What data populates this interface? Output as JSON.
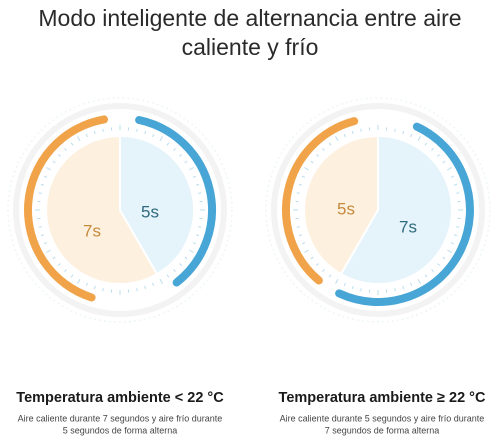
{
  "title": [
    "Modo inteligente de alternancia entre aire",
    "caliente y frío"
  ],
  "panels": [
    {
      "heading": "Temperatura ambiente < 22 °C",
      "description": [
        "Aire caliente durante 7 segundos y aire frío durante",
        "5 segundos de forma alterna"
      ],
      "warm_label": "7s",
      "cold_label": "5s"
    },
    {
      "heading": "Temperatura ambiente ≥ 22 °C",
      "description": [
        "Aire caliente durante 5 segundos y aire frío durante",
        "7 segundos de forma alterna"
      ],
      "warm_label": "5s",
      "cold_label": "7s"
    }
  ]
}
